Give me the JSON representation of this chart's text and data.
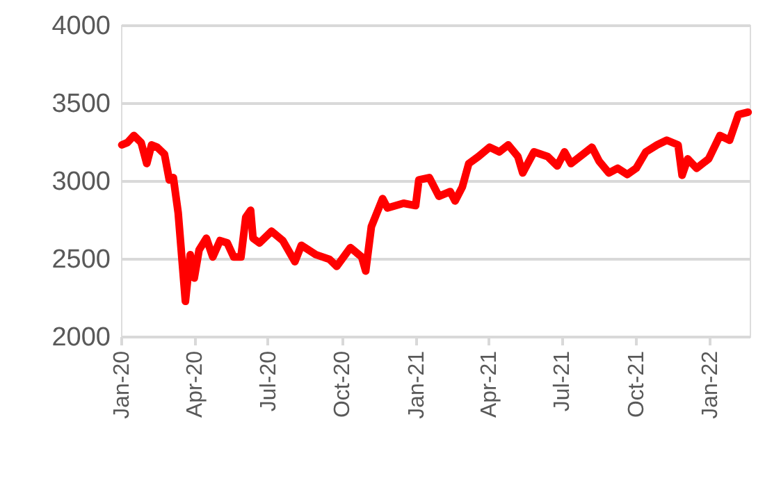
{
  "chart_data": {
    "type": "line",
    "x": [
      "2020-01-02",
      "2020-01-09",
      "2020-01-17",
      "2020-01-26",
      "2020-02-02",
      "2020-02-08",
      "2020-02-15",
      "2020-02-24",
      "2020-03-01",
      "2020-03-06",
      "2020-03-12",
      "2020-03-21",
      "2020-03-27",
      "2020-04-01",
      "2020-04-07",
      "2020-04-16",
      "2020-04-24",
      "2020-05-03",
      "2020-05-12",
      "2020-05-20",
      "2020-05-29",
      "2020-06-04",
      "2020-06-10",
      "2020-06-13",
      "2020-06-21",
      "2020-07-06",
      "2020-07-20",
      "2020-08-04",
      "2020-08-12",
      "2020-08-30",
      "2020-09-16",
      "2020-09-25",
      "2020-10-12",
      "2020-10-26",
      "2020-10-31",
      "2020-11-07",
      "2020-11-21",
      "2020-11-27",
      "2020-12-17",
      "2021-01-01",
      "2021-01-05",
      "2021-01-18",
      "2021-01-30",
      "2021-02-13",
      "2021-02-19",
      "2021-02-28",
      "2021-03-08",
      "2021-03-20",
      "2021-04-03",
      "2021-04-15",
      "2021-04-26",
      "2021-05-08",
      "2021-05-14",
      "2021-05-28",
      "2021-06-14",
      "2021-06-26",
      "2021-07-05",
      "2021-07-13",
      "2021-07-28",
      "2021-08-08",
      "2021-08-17",
      "2021-08-29",
      "2021-09-09",
      "2021-09-21",
      "2021-10-02",
      "2021-10-14",
      "2021-10-28",
      "2021-11-09",
      "2021-11-23",
      "2021-11-28",
      "2021-12-05",
      "2021-12-16",
      "2021-12-31",
      "2022-01-14",
      "2022-01-26",
      "2022-02-06",
      "2022-02-18"
    ],
    "series": [
      {
        "color": "#ff0000",
        "values": [
          3230,
          3245,
          3290,
          3245,
          3110,
          3230,
          3215,
          3170,
          3005,
          3020,
          2795,
          2225,
          2525,
          2375,
          2555,
          2630,
          2510,
          2615,
          2600,
          2510,
          2510,
          2765,
          2810,
          2630,
          2600,
          2675,
          2615,
          2480,
          2585,
          2525,
          2495,
          2450,
          2570,
          2510,
          2420,
          2705,
          2885,
          2825,
          2855,
          2840,
          3005,
          3020,
          2900,
          2930,
          2870,
          2960,
          3110,
          3155,
          3215,
          3185,
          3230,
          3155,
          3050,
          3185,
          3155,
          3095,
          3185,
          3110,
          3170,
          3215,
          3125,
          3050,
          3080,
          3040,
          3080,
          3185,
          3230,
          3260,
          3230,
          3035,
          3140,
          3080,
          3140,
          3290,
          3260,
          3425,
          3440
        ]
      }
    ],
    "xlim": [
      "2020-01-01",
      "2022-02-20"
    ],
    "xticks": [
      {
        "value": "2020-01-01",
        "label": "Jan-20"
      },
      {
        "value": "2020-04-01",
        "label": "Apr-20"
      },
      {
        "value": "2020-07-01",
        "label": "Jul-20"
      },
      {
        "value": "2020-10-01",
        "label": "Oct-20"
      },
      {
        "value": "2021-01-01",
        "label": "Jan-21"
      },
      {
        "value": "2021-04-01",
        "label": "Apr-21"
      },
      {
        "value": "2021-07-01",
        "label": "Jul-21"
      },
      {
        "value": "2021-10-01",
        "label": "Oct-21"
      },
      {
        "value": "2022-01-01",
        "label": "Jan-22"
      }
    ],
    "ylim": [
      2000,
      4000
    ],
    "yticks": [
      2000,
      2500,
      3000,
      3500,
      4000
    ],
    "grid": "y",
    "line_style": "solid",
    "marker": "none"
  }
}
